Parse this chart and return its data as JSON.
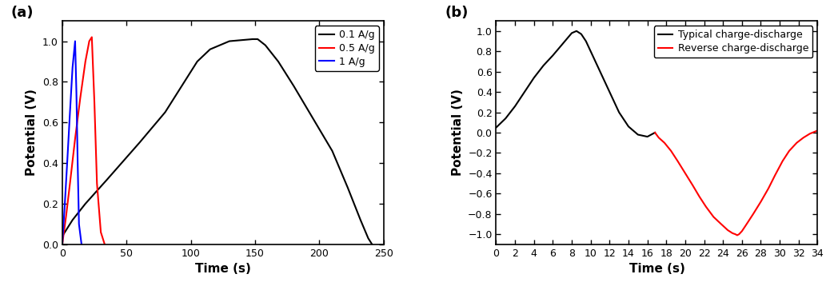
{
  "panel_a": {
    "title": "(a)",
    "xlabel": "Time (s)",
    "ylabel": "Potential (V)",
    "xlim": [
      0,
      250
    ],
    "ylim": [
      0.0,
      1.1
    ],
    "yticks": [
      0.0,
      0.2,
      0.4,
      0.6,
      0.8,
      1.0
    ],
    "xticks": [
      0,
      50,
      100,
      150,
      200,
      250
    ],
    "legend": [
      "0.1 A/g",
      "0.5 A/g",
      "1 A/g"
    ],
    "colors": [
      "black",
      "red",
      "blue"
    ],
    "line_01Ag_t": [
      0,
      3,
      8,
      18,
      35,
      60,
      80,
      95,
      105,
      115,
      130,
      148,
      152,
      158,
      168,
      180,
      195,
      210,
      222,
      232,
      238,
      241
    ],
    "line_01Ag_v": [
      0.04,
      0.07,
      0.12,
      0.2,
      0.32,
      0.5,
      0.65,
      0.8,
      0.9,
      0.96,
      1.0,
      1.01,
      1.01,
      0.98,
      0.9,
      0.78,
      0.62,
      0.46,
      0.28,
      0.12,
      0.03,
      0.0
    ],
    "line_05Ag_t": [
      0,
      3,
      6,
      10,
      14,
      18,
      21,
      23,
      25,
      27,
      30,
      33
    ],
    "line_05Ag_v": [
      0.0,
      0.14,
      0.3,
      0.52,
      0.72,
      0.9,
      1.0,
      1.02,
      0.7,
      0.3,
      0.06,
      0.0
    ],
    "line_1Ag_t": [
      0,
      2,
      4,
      6,
      8,
      10,
      11,
      12,
      13,
      15
    ],
    "line_1Ag_v": [
      0.0,
      0.2,
      0.42,
      0.65,
      0.87,
      1.0,
      0.75,
      0.4,
      0.1,
      0.0
    ]
  },
  "panel_b": {
    "title": "(b)",
    "xlabel": "Time (s)",
    "ylabel": "Potential (V)",
    "xlim": [
      0,
      34
    ],
    "ylim": [
      -1.1,
      1.1
    ],
    "yticks": [
      -1.0,
      -0.8,
      -0.6,
      -0.4,
      -0.2,
      0.0,
      0.2,
      0.4,
      0.6,
      0.8,
      1.0
    ],
    "xticks": [
      0,
      2,
      4,
      6,
      8,
      10,
      12,
      14,
      16,
      18,
      20,
      22,
      24,
      26,
      28,
      30,
      32,
      34
    ],
    "legend": [
      "Typical charge-discharge",
      "Reverse charge-discharge"
    ],
    "colors": [
      "black",
      "red"
    ],
    "typical_t": [
      0,
      1,
      2,
      3,
      4,
      5,
      6,
      7,
      8,
      8.5,
      9,
      9.5,
      10,
      11,
      12,
      13,
      14,
      15,
      16,
      16.8
    ],
    "typical_v": [
      0.05,
      0.14,
      0.26,
      0.4,
      0.54,
      0.66,
      0.76,
      0.87,
      0.98,
      1.0,
      0.97,
      0.9,
      0.8,
      0.6,
      0.4,
      0.2,
      0.06,
      -0.02,
      -0.04,
      0.0
    ],
    "reverse_t": [
      16.8,
      17.2,
      17.8,
      18.5,
      19.2,
      20.0,
      20.8,
      21.5,
      22.2,
      23.0,
      23.8,
      24.5,
      25.0,
      25.3,
      25.5,
      25.7,
      26.0,
      26.5,
      27.2,
      28.0,
      28.8,
      29.5,
      30.3,
      31.0,
      31.8,
      32.5,
      33.2,
      34.0
    ],
    "reverse_v": [
      0.0,
      -0.05,
      -0.1,
      -0.18,
      -0.28,
      -0.4,
      -0.52,
      -0.63,
      -0.73,
      -0.83,
      -0.9,
      -0.96,
      -0.99,
      -1.0,
      -1.01,
      -1.0,
      -0.97,
      -0.9,
      -0.8,
      -0.68,
      -0.55,
      -0.42,
      -0.28,
      -0.18,
      -0.1,
      -0.05,
      -0.01,
      0.02
    ]
  },
  "background_color": "white",
  "font_size_label": 11,
  "font_size_tick": 9,
  "font_size_title": 13,
  "font_size_legend": 9
}
